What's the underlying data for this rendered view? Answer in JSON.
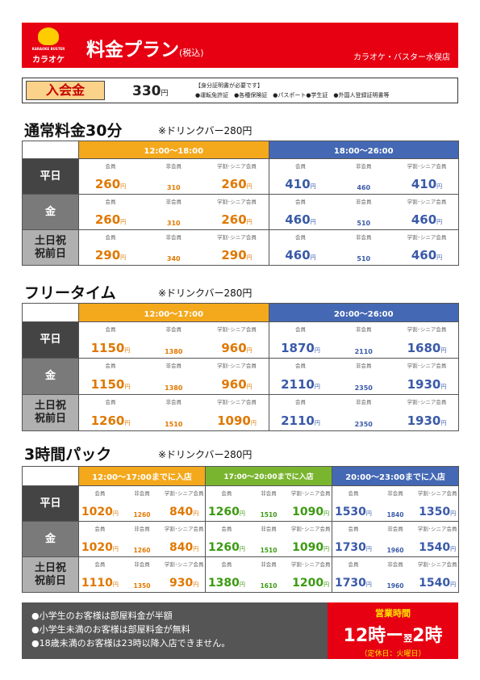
{
  "header": {
    "logo_sub": "KARAOKE BUSTER",
    "logo_name": "カラオケ",
    "title": "料金プラン",
    "title_sub": "(税込)",
    "store": "カラオケ・バスター水俣店",
    "brand_color": "#e60012"
  },
  "entry": {
    "label": "入会金",
    "price": "330",
    "yen": "円",
    "note_title": "【身分証明書が必要です】",
    "note_items": "●運転免許証　●各種保険証　●パスポート●学生証　●外国人登録証明書等"
  },
  "labels": {
    "member": "会員",
    "nonmember": "非会員",
    "student": "学割･シニア会員",
    "yen": "円"
  },
  "sections": [
    {
      "title": "通常料金30分",
      "note": "※ドリンクバー280円",
      "periods": [
        "12:00〜18:00",
        "18:00〜26:00"
      ],
      "rows": [
        {
          "label": "平日",
          "prices": [
            [
              "260",
              "310",
              "260"
            ],
            [
              "410",
              "460",
              "410"
            ]
          ]
        },
        {
          "label": "金",
          "prices": [
            [
              "260",
              "310",
              "260"
            ],
            [
              "460",
              "510",
              "460"
            ]
          ]
        },
        {
          "label": "土日祝\n祝前日",
          "prices": [
            [
              "290",
              "340",
              "290"
            ],
            [
              "460",
              "510",
              "460"
            ]
          ]
        }
      ]
    },
    {
      "title": "フリータイム",
      "note": "※ドリンクバー280円",
      "periods": [
        "12:00〜17:00",
        "20:00〜26:00"
      ],
      "rows": [
        {
          "label": "平日",
          "prices": [
            [
              "1150",
              "1380",
              "960"
            ],
            [
              "1870",
              "2110",
              "1680"
            ]
          ]
        },
        {
          "label": "金",
          "prices": [
            [
              "1150",
              "1380",
              "960"
            ],
            [
              "2110",
              "2350",
              "1930"
            ]
          ]
        },
        {
          "label": "土日祝\n祝前日",
          "prices": [
            [
              "1260",
              "1510",
              "1090"
            ],
            [
              "2110",
              "2350",
              "1930"
            ]
          ]
        }
      ]
    },
    {
      "title": "3時間パック",
      "note": "※ドリンクバー280円",
      "periods": [
        "12:00〜17:00までに入店",
        "17:00〜20:00までに入店",
        "20:00〜23:00までに入店"
      ],
      "rows": [
        {
          "label": "平日",
          "prices": [
            [
              "1020",
              "1260",
              "840"
            ],
            [
              "1260",
              "1510",
              "1090"
            ],
            [
              "1530",
              "1840",
              "1350"
            ]
          ]
        },
        {
          "label": "金",
          "prices": [
            [
              "1020",
              "1260",
              "840"
            ],
            [
              "1260",
              "1510",
              "1090"
            ],
            [
              "1730",
              "1960",
              "1540"
            ]
          ]
        },
        {
          "label": "土日祝\n祝前日",
          "prices": [
            [
              "1110",
              "1350",
              "930"
            ],
            [
              "1380",
              "1610",
              "1200"
            ],
            [
              "1730",
              "1960",
              "1540"
            ]
          ]
        }
      ]
    }
  ],
  "footer": {
    "notes": [
      "●小学生のお客様は部屋料金が半額",
      "●小学生未満のお客様は部屋料金が無料",
      "●18歳未満のお客様は23時以降入店できません。"
    ],
    "hours_label": "営業時間",
    "hours_open": "12時",
    "hours_sep": "ー",
    "hours_next": "翌",
    "hours_close": "2時",
    "holiday": "（定休日：火曜日）"
  }
}
